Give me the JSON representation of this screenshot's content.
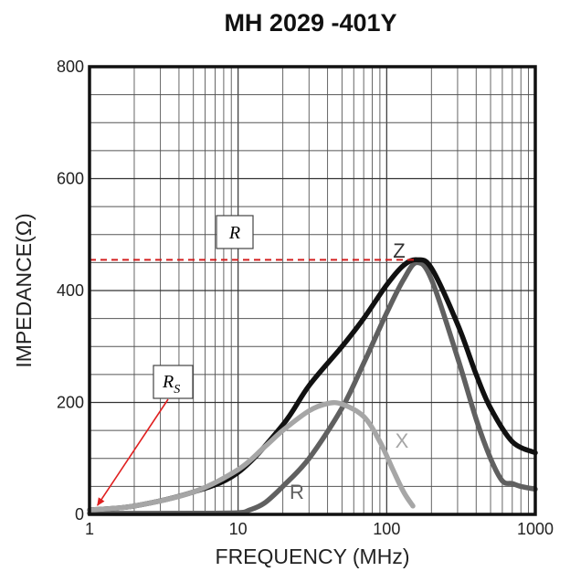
{
  "chart_data": {
    "type": "line",
    "title": "MH 2029 -401Y",
    "xlabel": "FREQUENCY (MHz)",
    "ylabel": "IMPEDANCE(Ω)",
    "x_scale": "log",
    "xlim": [
      1,
      1000
    ],
    "ylim": [
      0,
      800
    ],
    "x_ticks": [
      "1",
      "10",
      "100",
      "1000"
    ],
    "y_ticks": [
      "0",
      "200",
      "400",
      "600",
      "800"
    ],
    "grid": true,
    "series": [
      {
        "name": "Z",
        "color": "#111111",
        "x": [
          1,
          2,
          5,
          10,
          20,
          30,
          50,
          70,
          100,
          130,
          160,
          200,
          300,
          400,
          500,
          700,
          1000
        ],
        "y": [
          8,
          15,
          40,
          75,
          160,
          230,
          300,
          350,
          410,
          445,
          455,
          440,
          340,
          250,
          190,
          130,
          110
        ]
      },
      {
        "name": "R",
        "color": "#606060",
        "x": [
          1,
          5,
          10,
          12,
          15,
          20,
          30,
          50,
          70,
          100,
          130,
          160,
          200,
          300,
          400,
          500,
          600,
          700,
          800,
          1000
        ],
        "y": [
          2,
          2,
          3,
          8,
          20,
          50,
          100,
          190,
          270,
          360,
          420,
          450,
          420,
          280,
          170,
          100,
          60,
          55,
          50,
          45
        ]
      },
      {
        "name": "X",
        "color": "#a6a6a6",
        "x": [
          1,
          2,
          5,
          10,
          15,
          20,
          30,
          40,
          50,
          70,
          90,
          110,
          130,
          150
        ],
        "y": [
          8,
          15,
          40,
          80,
          120,
          150,
          185,
          198,
          197,
          175,
          130,
          80,
          40,
          15
        ]
      }
    ],
    "annotations": [
      {
        "label": "R",
        "value": 455
      },
      {
        "label": "R",
        "subscript": "S",
        "x": 1.1,
        "y": 8
      }
    ]
  }
}
